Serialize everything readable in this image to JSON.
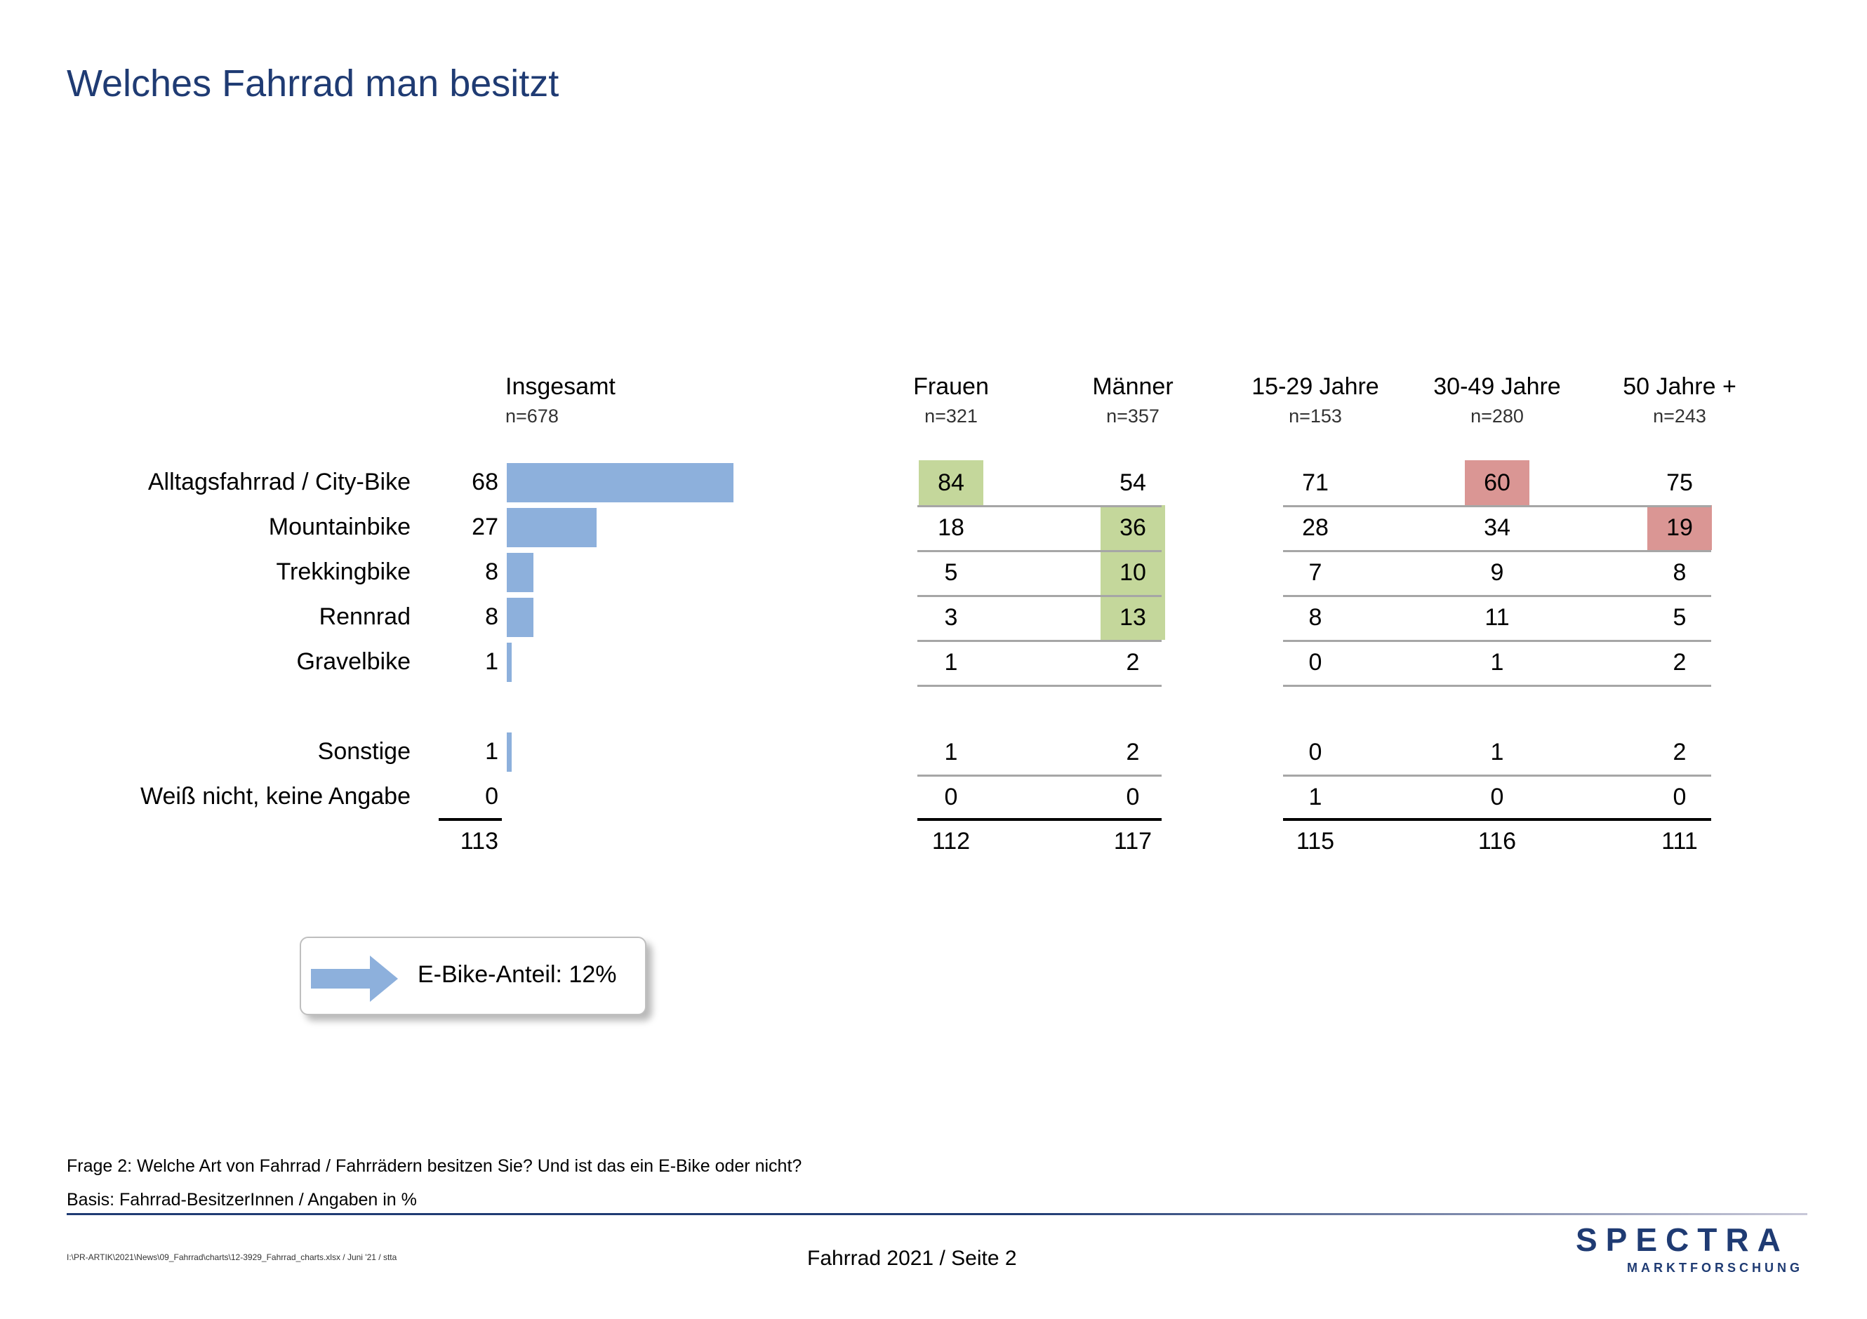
{
  "title": "Welches Fahrrad man besitzt",
  "chart_data": {
    "type": "table",
    "columns": [
      {
        "name": "Insgesamt",
        "n": "n=678"
      },
      {
        "name": "Frauen",
        "n": "n=321"
      },
      {
        "name": "Männer",
        "n": "n=357"
      },
      {
        "name": "15-29 Jahre",
        "n": "n=153"
      },
      {
        "name": "30-49 Jahre",
        "n": "n=280"
      },
      {
        "name": "50 Jahre +",
        "n": "n=243"
      }
    ],
    "rows": [
      {
        "label": "Alltagsfahrrad / City-Bike",
        "values": [
          68,
          84,
          54,
          71,
          60,
          75
        ],
        "highlight": [
          null,
          "green",
          null,
          null,
          "red",
          null
        ]
      },
      {
        "label": "Mountainbike",
        "values": [
          27,
          18,
          36,
          28,
          34,
          19
        ],
        "highlight": [
          null,
          null,
          "green",
          null,
          null,
          "red"
        ]
      },
      {
        "label": "Trekkingbike",
        "values": [
          8,
          5,
          10,
          7,
          9,
          8
        ],
        "highlight": [
          null,
          null,
          "green",
          null,
          null,
          null
        ]
      },
      {
        "label": "Rennrad",
        "values": [
          8,
          3,
          13,
          8,
          11,
          5
        ],
        "highlight": [
          null,
          null,
          "green",
          null,
          null,
          null
        ]
      },
      {
        "label": "Gravelbike",
        "values": [
          1,
          1,
          2,
          0,
          1,
          2
        ],
        "highlight": [
          null,
          null,
          null,
          null,
          null,
          null
        ]
      },
      {
        "label": "Sonstige",
        "values": [
          1,
          1,
          2,
          0,
          1,
          2
        ],
        "highlight": [
          null,
          null,
          null,
          null,
          null,
          null
        ]
      },
      {
        "label": "Weiß nicht, keine Angabe",
        "values": [
          0,
          0,
          0,
          1,
          0,
          0
        ],
        "highlight": [
          null,
          null,
          null,
          null,
          null,
          null
        ]
      }
    ],
    "totals": [
      113,
      112,
      117,
      115,
      116,
      111
    ],
    "bar_max": 100
  },
  "colors": {
    "bar": "#8db0dc",
    "highlight_green": "#c4d79b",
    "highlight_red": "#da9694",
    "title": "#1f3b73"
  },
  "callout": {
    "text": "E-Bike-Anteil: 12%",
    "icon": "arrow-right-icon"
  },
  "notes": {
    "question": "Frage 2: Welche Art von Fahrrad / Fahrrädern besitzen Sie? Und ist das ein E-Bike oder nicht?",
    "basis": "Basis: Fahrrad-BesitzerInnen / Angaben in %"
  },
  "footer": {
    "path": "I:\\PR-ARTIK\\2021\\News\\09_Fahrrad\\charts\\12-3929_Fahrrad_charts.xlsx / Juni '21 / stta",
    "page": "Fahrrad 2021  /  Seite  2",
    "logo": "SPECTRA",
    "logo_sub": "MARKTFORSCHUNG"
  }
}
